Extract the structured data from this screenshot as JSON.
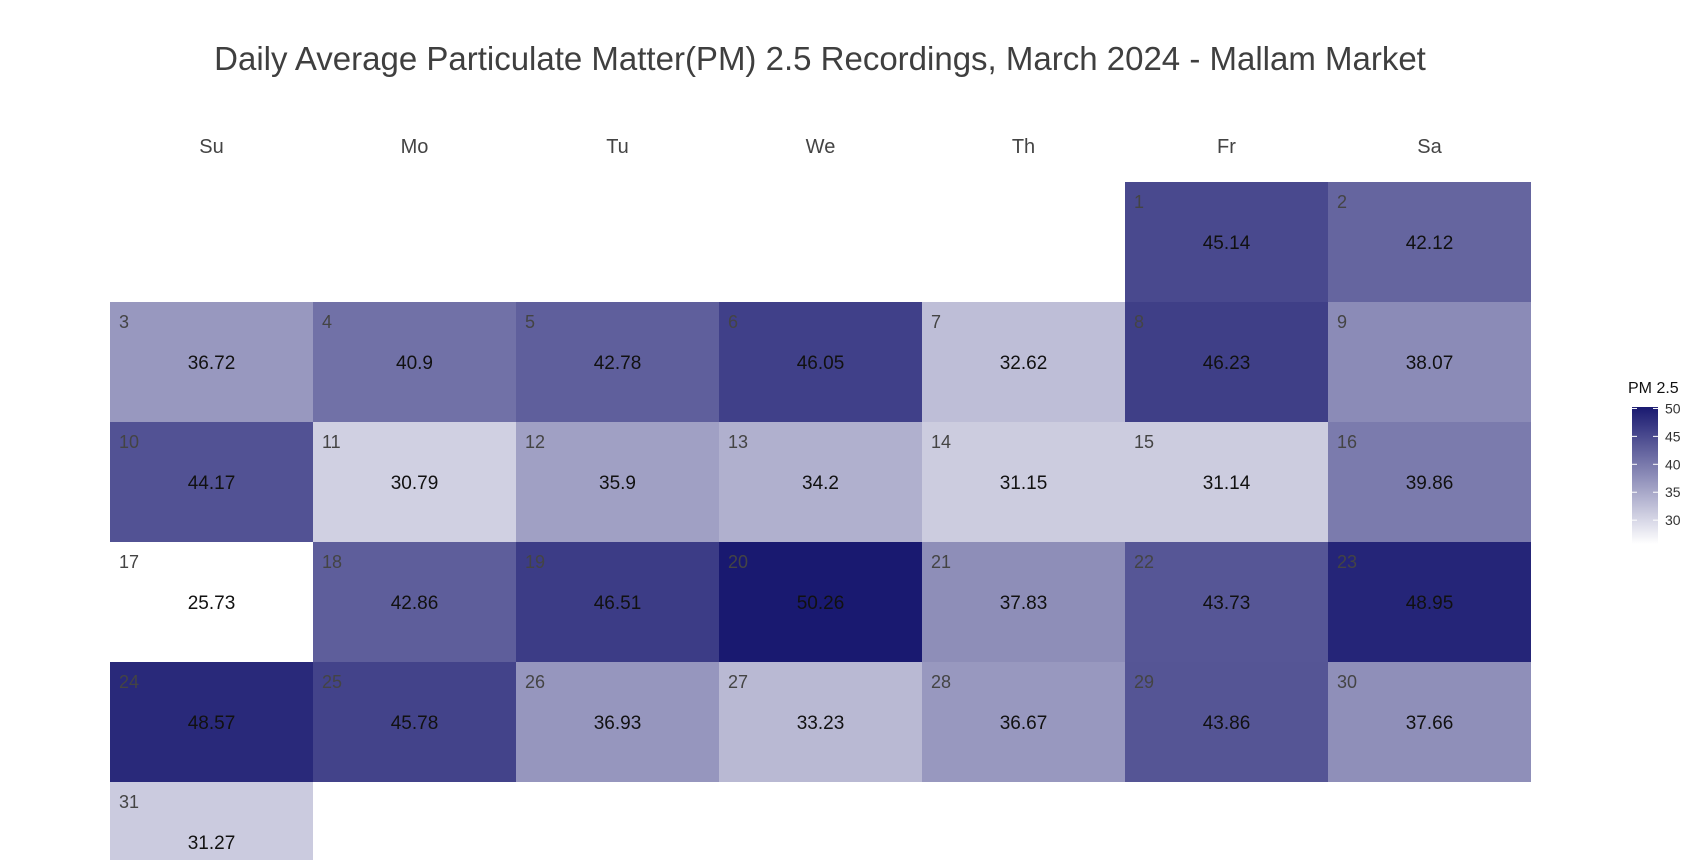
{
  "chart_data": {
    "type": "heatmap",
    "title": "Daily Average Particulate Matter(PM) 2.5 Recordings, March 2024 - Mallam Market",
    "weekdays": [
      "Su",
      "Mo",
      "Tu",
      "We",
      "Th",
      "Fr",
      "Sa"
    ],
    "first_weekday_index": 5,
    "days": [
      1,
      2,
      3,
      4,
      5,
      6,
      7,
      8,
      9,
      10,
      11,
      12,
      13,
      14,
      15,
      16,
      17,
      18,
      19,
      20,
      21,
      22,
      23,
      24,
      25,
      26,
      27,
      28,
      29,
      30,
      31
    ],
    "values": [
      45.14,
      42.12,
      36.72,
      40.9,
      42.78,
      46.05,
      32.62,
      46.23,
      38.07,
      44.17,
      30.79,
      35.9,
      34.2,
      31.15,
      31.14,
      39.86,
      25.73,
      42.86,
      46.51,
      50.26,
      37.83,
      43.73,
      48.95,
      48.57,
      45.78,
      36.93,
      33.23,
      36.67,
      43.86,
      37.66,
      31.27
    ],
    "legend": {
      "title": "PM 2.5",
      "ticks": [
        50,
        45,
        40,
        35,
        30
      ],
      "range": [
        25.73,
        50.26
      ],
      "placement": "right"
    },
    "colors": {
      "low": "#ffffff",
      "high": "#191970"
    },
    "grid": false
  }
}
